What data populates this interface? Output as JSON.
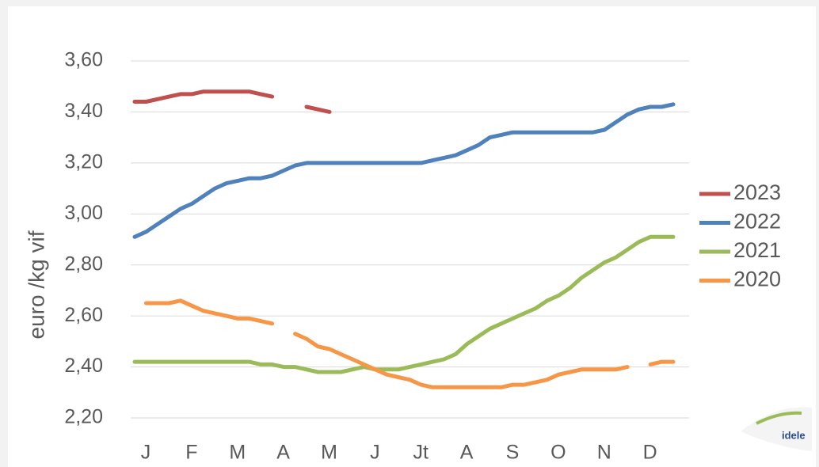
{
  "chart_data": {
    "type": "line",
    "y_label": "euro /kg vif",
    "logo": "idele",
    "categories": [
      "J",
      null,
      null,
      null,
      "F",
      null,
      null,
      null,
      "M",
      null,
      null,
      null,
      "A",
      null,
      null,
      null,
      "M",
      null,
      null,
      null,
      "J",
      null,
      null,
      null,
      "Jt",
      null,
      null,
      null,
      "A",
      null,
      null,
      null,
      "S",
      null,
      null,
      null,
      "O",
      null,
      null,
      null,
      "N",
      null,
      null,
      null,
      "D",
      null,
      null,
      null
    ],
    "ylim": [
      2.2,
      3.6
    ],
    "yticks": [
      {
        "value": 2.2,
        "label": "2,20"
      },
      {
        "value": 2.4,
        "label": "2,40"
      },
      {
        "value": 2.6,
        "label": "2,60"
      },
      {
        "value": 2.8,
        "label": "2,80"
      },
      {
        "value": 3.0,
        "label": "3,00"
      },
      {
        "value": 3.2,
        "label": "3,20"
      },
      {
        "value": 3.4,
        "label": "3,40"
      },
      {
        "value": 3.6,
        "label": "3,60"
      }
    ],
    "grid": true,
    "legend": "right",
    "series": [
      {
        "name": "2023",
        "color": "#c0504d",
        "values": [
          3.44,
          3.44,
          3.45,
          3.46,
          3.47,
          3.47,
          3.48,
          3.48,
          3.48,
          3.48,
          3.48,
          3.47,
          3.46,
          null,
          null,
          3.42,
          3.41,
          3.4,
          null,
          null,
          null,
          null,
          null,
          null,
          null,
          null,
          null,
          null,
          null,
          null,
          null,
          null,
          null,
          null,
          null,
          null,
          null,
          null,
          null,
          null,
          null,
          null,
          null,
          null,
          null,
          null,
          null,
          null
        ]
      },
      {
        "name": "2022",
        "color": "#4f81bd",
        "values": [
          2.91,
          2.93,
          2.96,
          2.99,
          3.02,
          3.04,
          3.07,
          3.1,
          3.12,
          3.13,
          3.14,
          3.14,
          3.15,
          3.17,
          3.19,
          3.2,
          3.2,
          3.2,
          3.2,
          3.2,
          3.2,
          3.2,
          3.2,
          3.2,
          3.2,
          3.2,
          3.21,
          3.22,
          3.23,
          3.25,
          3.27,
          3.3,
          3.31,
          3.32,
          3.32,
          3.32,
          3.32,
          3.32,
          3.32,
          3.32,
          3.32,
          3.33,
          3.36,
          3.39,
          3.41,
          3.42,
          3.42,
          3.43
        ]
      },
      {
        "name": "2021",
        "color": "#9bbb59",
        "values": [
          2.42,
          2.42,
          2.42,
          2.42,
          2.42,
          2.42,
          2.42,
          2.42,
          2.42,
          2.42,
          2.42,
          2.41,
          2.41,
          2.4,
          2.4,
          2.39,
          2.38,
          2.38,
          2.38,
          2.39,
          2.4,
          2.39,
          2.39,
          2.39,
          2.4,
          2.41,
          2.42,
          2.43,
          2.45,
          2.49,
          2.52,
          2.55,
          2.57,
          2.59,
          2.61,
          2.63,
          2.66,
          2.68,
          2.71,
          2.75,
          2.78,
          2.81,
          2.83,
          2.86,
          2.89,
          2.91,
          2.91,
          2.91
        ]
      },
      {
        "name": "2020",
        "color": "#f79646",
        "values": [
          null,
          2.65,
          2.65,
          2.65,
          2.66,
          2.64,
          2.62,
          2.61,
          2.6,
          2.59,
          2.59,
          2.58,
          2.57,
          null,
          2.53,
          2.51,
          2.48,
          2.47,
          2.45,
          2.43,
          2.41,
          2.39,
          2.37,
          2.36,
          2.35,
          2.33,
          2.32,
          2.32,
          2.32,
          2.32,
          2.32,
          2.32,
          2.32,
          2.33,
          2.33,
          2.34,
          2.35,
          2.37,
          2.38,
          2.39,
          2.39,
          2.39,
          2.39,
          2.4,
          null,
          2.41,
          2.42,
          2.42
        ]
      }
    ]
  }
}
